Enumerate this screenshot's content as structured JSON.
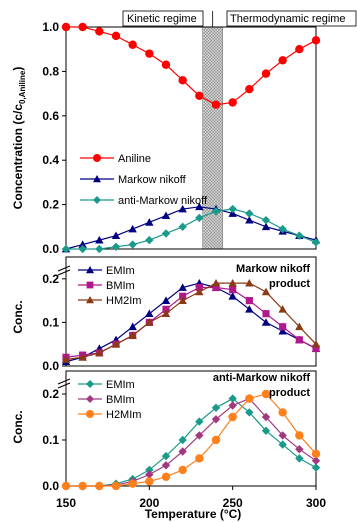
{
  "chart_data": [
    {
      "type": "line",
      "id": "top",
      "xlim": [
        150,
        300
      ],
      "ylim": [
        0,
        1.0
      ],
      "yticks": [
        0.0,
        0.2,
        0.4,
        0.6,
        0.8,
        1.0
      ],
      "ytick_labels": [
        "0.0",
        "0.2",
        "0.4",
        "0.6",
        "0.8",
        "1.0"
      ],
      "ylabel": "Concentration (c/c₀,Aniline)",
      "ylabel_main": "Concentration (c/c",
      "ylabel_sub": "0,Aniline",
      "ylabel_close": ")",
      "regions": {
        "left_label": "Kinetic regime",
        "right_label": "Thermodynamic regime",
        "band_x": [
          232,
          244
        ]
      },
      "legend_placement": "center-left",
      "x": [
        150,
        160,
        170,
        180,
        190,
        200,
        210,
        220,
        230,
        240,
        250,
        260,
        270,
        280,
        290,
        300
      ],
      "series": [
        {
          "name": "Aniline",
          "color": "#ff0000",
          "marker": "circle",
          "values": [
            1.0,
            1.0,
            0.98,
            0.96,
            0.92,
            0.88,
            0.83,
            0.76,
            0.69,
            0.65,
            0.66,
            0.72,
            0.79,
            0.85,
            0.9,
            0.94
          ]
        },
        {
          "name": "Markow nikoff",
          "color": "#000080",
          "marker": "triangle",
          "values": [
            0.0,
            0.02,
            0.04,
            0.06,
            0.09,
            0.12,
            0.15,
            0.18,
            0.19,
            0.18,
            0.16,
            0.13,
            0.1,
            0.08,
            0.06,
            0.04
          ]
        },
        {
          "name": "anti-Markow nikoff",
          "color": "#1a9a8a",
          "marker": "diamond",
          "values": [
            0.0,
            0.0,
            0.0,
            0.01,
            0.02,
            0.04,
            0.07,
            0.1,
            0.14,
            0.17,
            0.18,
            0.16,
            0.13,
            0.09,
            0.06,
            0.03
          ]
        }
      ]
    },
    {
      "type": "line",
      "id": "middle",
      "xlim": [
        150,
        300
      ],
      "ylim": [
        0,
        0.25
      ],
      "yticks": [
        0.0,
        0.1,
        0.2
      ],
      "ytick_labels": [
        "0.0",
        "0.1",
        "0.2"
      ],
      "ylabel": "Conc.",
      "annotation_line1": "Markow nikoff",
      "annotation_line2": "product",
      "legend_placement": "top-left",
      "x": [
        150,
        160,
        170,
        180,
        190,
        200,
        210,
        220,
        230,
        240,
        250,
        260,
        270,
        280,
        290,
        300
      ],
      "series": [
        {
          "name": "EMIm",
          "color": "#000080",
          "marker": "triangle",
          "values": [
            0.01,
            0.02,
            0.04,
            0.06,
            0.09,
            0.12,
            0.15,
            0.18,
            0.19,
            0.18,
            0.16,
            0.13,
            0.1,
            0.08,
            0.06,
            0.04
          ]
        },
        {
          "name": "BMIm",
          "color": "#b0188c",
          "marker": "square",
          "values": [
            0.02,
            0.025,
            0.03,
            0.05,
            0.07,
            0.1,
            0.13,
            0.16,
            0.18,
            0.18,
            0.175,
            0.15,
            0.12,
            0.09,
            0.06,
            0.04
          ]
        },
        {
          "name": "HM2Im",
          "color": "#8a3a14",
          "marker": "triangle",
          "values": [
            0.015,
            0.02,
            0.03,
            0.05,
            0.07,
            0.1,
            0.12,
            0.15,
            0.17,
            0.19,
            0.19,
            0.19,
            0.17,
            0.13,
            0.09,
            0.05
          ]
        }
      ]
    },
    {
      "type": "line",
      "id": "bottom",
      "xlim": [
        150,
        300
      ],
      "ylim": [
        0,
        0.25
      ],
      "yticks": [
        0.0,
        0.1,
        0.2
      ],
      "ytick_labels": [
        "0.0",
        "0.1",
        "0.2"
      ],
      "xticks": [
        150,
        200,
        250,
        300
      ],
      "xtick_labels": [
        "150",
        "200",
        "250",
        "300"
      ],
      "ylabel": "Conc.",
      "xlabel": "Temperature (°C)",
      "annotation_line1": "anti-Markow nikoff",
      "annotation_line2": "product",
      "legend_placement": "top-left",
      "x": [
        150,
        160,
        170,
        180,
        190,
        200,
        210,
        220,
        230,
        240,
        250,
        260,
        270,
        280,
        290,
        300
      ],
      "series": [
        {
          "name": "EMIm",
          "color": "#1a9a8a",
          "marker": "diamond",
          "values": [
            0.0,
            0.0,
            0.0,
            0.005,
            0.015,
            0.035,
            0.065,
            0.1,
            0.14,
            0.17,
            0.19,
            0.16,
            0.12,
            0.09,
            0.06,
            0.04
          ]
        },
        {
          "name": "BMIm",
          "color": "#a03a80",
          "marker": "diamond",
          "values": [
            0.0,
            0.0,
            0.0,
            0.002,
            0.01,
            0.025,
            0.045,
            0.075,
            0.11,
            0.145,
            0.175,
            0.19,
            0.15,
            0.11,
            0.08,
            0.055
          ]
        },
        {
          "name": "H2MIm",
          "color": "#ff7f1a",
          "marker": "circle",
          "values": [
            0.0,
            0.0,
            0.0,
            0.0,
            0.005,
            0.01,
            0.02,
            0.035,
            0.06,
            0.1,
            0.15,
            0.19,
            0.2,
            0.16,
            0.11,
            0.07
          ]
        }
      ]
    }
  ]
}
